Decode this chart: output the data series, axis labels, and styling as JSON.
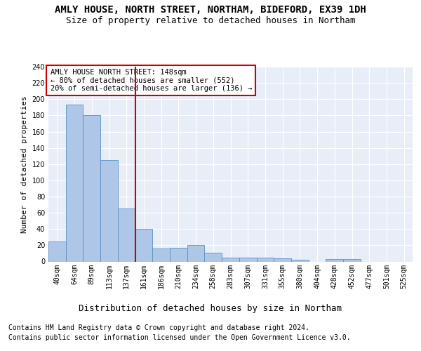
{
  "title": "AMLY HOUSE, NORTH STREET, NORTHAM, BIDEFORD, EX39 1DH",
  "subtitle": "Size of property relative to detached houses in Northam",
  "xlabel": "Distribution of detached houses by size in Northam",
  "ylabel": "Number of detached properties",
  "footer_line1": "Contains HM Land Registry data © Crown copyright and database right 2024.",
  "footer_line2": "Contains public sector information licensed under the Open Government Licence v3.0.",
  "bar_labels": [
    "40sqm",
    "64sqm",
    "89sqm",
    "113sqm",
    "137sqm",
    "161sqm",
    "186sqm",
    "210sqm",
    "234sqm",
    "258sqm",
    "283sqm",
    "307sqm",
    "331sqm",
    "355sqm",
    "380sqm",
    "404sqm",
    "428sqm",
    "452sqm",
    "477sqm",
    "501sqm",
    "525sqm"
  ],
  "bar_values": [
    25,
    193,
    180,
    125,
    65,
    40,
    16,
    17,
    20,
    11,
    5,
    5,
    5,
    4,
    2,
    0,
    3,
    3,
    0,
    0,
    0
  ],
  "bar_color": "#aec6e8",
  "bar_edgecolor": "#5a8fc2",
  "vline_x": 4.5,
  "vline_color": "#cc0000",
  "annotation_text": "AMLY HOUSE NORTH STREET: 148sqm\n← 80% of detached houses are smaller (552)\n20% of semi-detached houses are larger (136) →",
  "annotation_box_edgecolor": "#cc0000",
  "annotation_box_facecolor": "#ffffff",
  "ylim": [
    0,
    240
  ],
  "yticks": [
    0,
    20,
    40,
    60,
    80,
    100,
    120,
    140,
    160,
    180,
    200,
    220,
    240
  ],
  "background_color": "#e8eef7",
  "grid_color": "#ffffff",
  "title_fontsize": 10,
  "subtitle_fontsize": 9,
  "xlabel_fontsize": 9,
  "ylabel_fontsize": 8,
  "tick_fontsize": 7,
  "annotation_fontsize": 7.5,
  "footer_fontsize": 7
}
